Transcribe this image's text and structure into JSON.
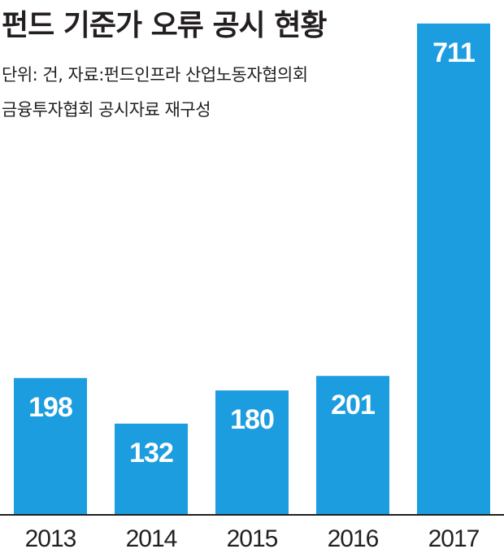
{
  "chart_data": {
    "type": "bar",
    "title": "펀드 기준가 오류 공시 현황",
    "subtitle_lines": [
      "단위: 건, 자료:펀드인프라 산업노동자협의회",
      "금융투자협회 공시자료 재구성"
    ],
    "categories": [
      "2013",
      "2014",
      "2015",
      "2016",
      "2017"
    ],
    "values": [
      198,
      132,
      180,
      201,
      711
    ],
    "ylim": [
      0,
      745
    ],
    "grid": false,
    "legend": "none",
    "bar_color": "#1c9ddf"
  }
}
